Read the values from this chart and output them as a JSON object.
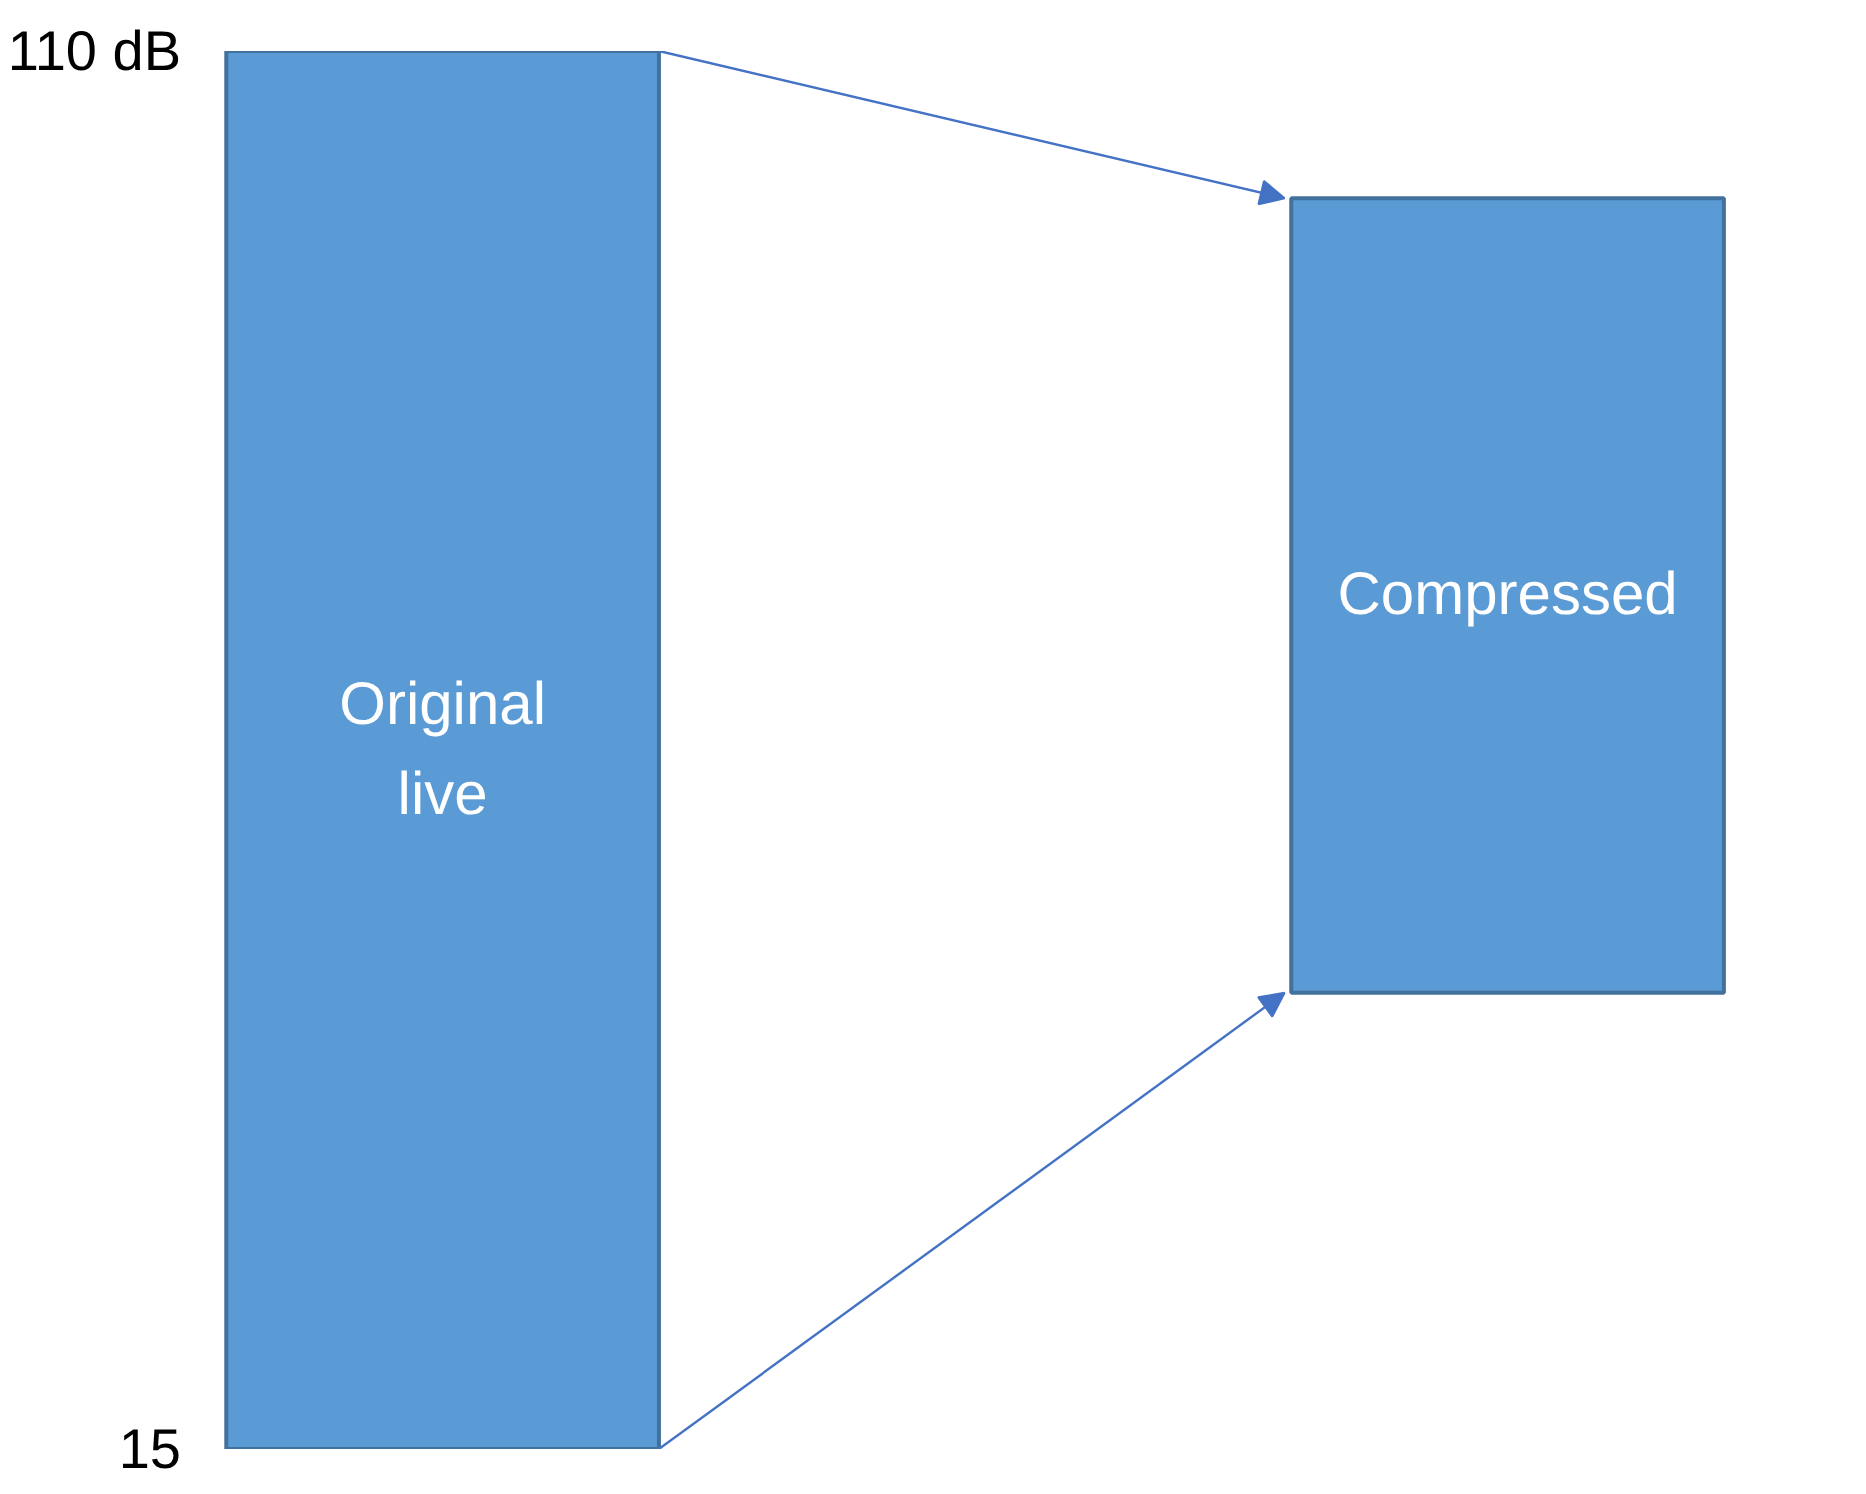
{
  "chart_data": {
    "type": "bar",
    "categories": [
      "Original live",
      "Compressed"
    ],
    "values": [
      95,
      54
    ],
    "base": [
      15,
      46
    ],
    "color": "#5b9bd5",
    "ylim": [
      15,
      110
    ],
    "yticks": [
      {
        "value": 110,
        "label": "110 dB"
      },
      15
    ],
    "grid": false
  }
}
